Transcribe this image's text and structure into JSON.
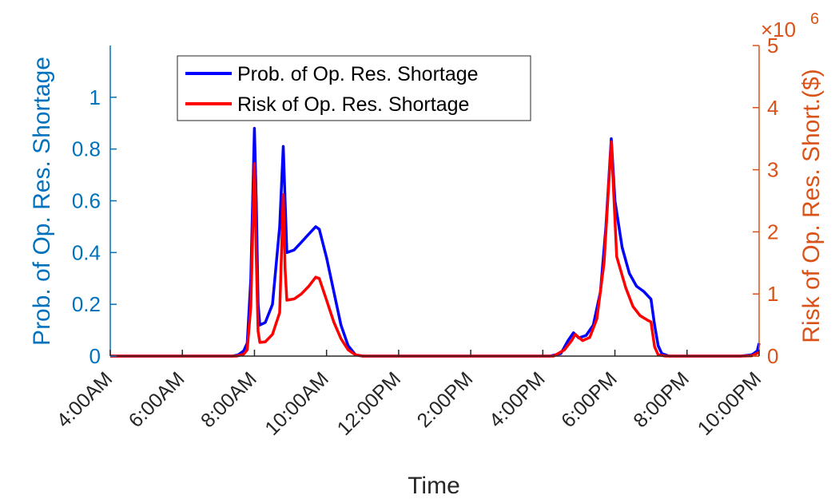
{
  "chart_data": {
    "type": "line",
    "xlabel": "Time",
    "x_tick_labels": [
      "4:00AM",
      "6:00AM",
      "8:00AM",
      "10:00AM",
      "12:00PM",
      "2:00PM",
      "4:00PM",
      "6:00PM",
      "8:00PM",
      "10:00PM"
    ],
    "x_tick_hours": [
      4,
      6,
      8,
      10,
      12,
      14,
      16,
      18,
      20,
      22
    ],
    "xlim": [
      4,
      22
    ],
    "left_axis": {
      "label": "Prob. of Op. Res. Shortage",
      "ylim": [
        0,
        1.2
      ],
      "ticks": [
        0,
        0.2,
        0.4,
        0.6,
        0.8,
        1
      ],
      "tick_labels": [
        "0",
        "0.2",
        "0.4",
        "0.6",
        "0.8",
        "1"
      ],
      "color": "#0072BD"
    },
    "right_axis": {
      "label": "Risk of Op. Res. Short.($)",
      "exponent_label": "×10",
      "exponent_power": "6",
      "ylim": [
        0,
        5
      ],
      "ticks": [
        0,
        1,
        2,
        3,
        4,
        5
      ],
      "tick_labels": [
        "0",
        "1",
        "2",
        "3",
        "4",
        "5"
      ],
      "color": "#D95319"
    },
    "series": [
      {
        "name": "Prob. of Op. Res. Shortage",
        "color": "#0000FF",
        "axis": "left",
        "x": [
          4,
          7.4,
          7.55,
          7.7,
          7.8,
          7.9,
          8.0,
          8.05,
          8.1,
          8.15,
          8.3,
          8.5,
          8.7,
          8.8,
          8.85,
          8.9,
          9.1,
          9.3,
          9.5,
          9.7,
          9.8,
          10.0,
          10.2,
          10.4,
          10.6,
          10.8,
          11.0,
          11.2,
          16.2,
          16.5,
          16.7,
          16.85,
          17.0,
          17.2,
          17.4,
          17.6,
          17.75,
          17.9,
          18.0,
          18.2,
          18.4,
          18.6,
          18.8,
          19.0,
          19.1,
          19.2,
          19.3,
          19.5,
          21.5,
          21.8,
          21.95,
          22
        ],
        "values": [
          0,
          0,
          0.005,
          0.02,
          0.05,
          0.3,
          0.88,
          0.6,
          0.2,
          0.12,
          0.13,
          0.2,
          0.5,
          0.81,
          0.6,
          0.4,
          0.41,
          0.44,
          0.47,
          0.5,
          0.49,
          0.38,
          0.25,
          0.12,
          0.04,
          0.005,
          0,
          0,
          0,
          0.01,
          0.06,
          0.09,
          0.07,
          0.08,
          0.12,
          0.25,
          0.5,
          0.84,
          0.6,
          0.42,
          0.32,
          0.27,
          0.25,
          0.22,
          0.12,
          0.04,
          0.01,
          0,
          0,
          0.005,
          0.02,
          0.05
        ]
      },
      {
        "name": "Risk of Op. Res. Shortage",
        "color": "#FF0000",
        "axis": "right",
        "x": [
          4,
          7.5,
          7.7,
          7.8,
          7.9,
          8.0,
          8.05,
          8.1,
          8.15,
          8.3,
          8.5,
          8.7,
          8.8,
          8.85,
          8.9,
          9.1,
          9.3,
          9.5,
          9.7,
          9.8,
          10.0,
          10.2,
          10.4,
          10.6,
          10.8,
          11.0,
          16.3,
          16.6,
          16.8,
          16.9,
          17.1,
          17.3,
          17.5,
          17.7,
          17.9,
          18.05,
          18.3,
          18.5,
          18.7,
          18.9,
          19.0,
          19.1,
          19.2,
          19.4,
          21.5,
          21.8,
          22
        ],
        "values": [
          0,
          0,
          0.03,
          0.1,
          0.8,
          3.1,
          1.6,
          0.4,
          0.22,
          0.23,
          0.35,
          0.7,
          2.6,
          1.4,
          0.9,
          0.92,
          1.0,
          1.12,
          1.27,
          1.25,
          0.9,
          0.55,
          0.28,
          0.1,
          0.02,
          0,
          0,
          0.1,
          0.25,
          0.35,
          0.25,
          0.3,
          0.6,
          1.5,
          3.45,
          1.6,
          1.1,
          0.8,
          0.65,
          0.58,
          0.55,
          0.15,
          0.02,
          0,
          0,
          0.005,
          0.06
        ]
      }
    ],
    "legend": {
      "position": "top-left",
      "entries": [
        "Prob. of Op. Res. Shortage",
        "Risk of Op. Res. Shortage"
      ]
    }
  }
}
